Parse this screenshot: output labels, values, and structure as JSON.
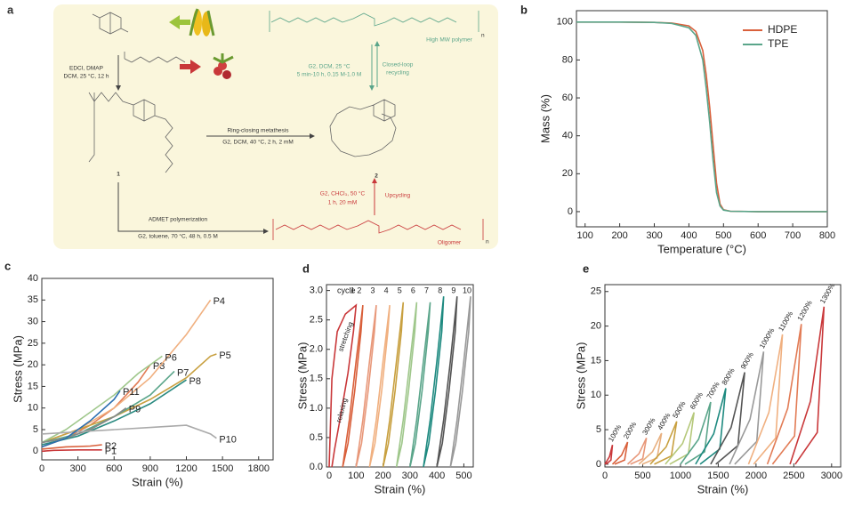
{
  "scheme": {
    "panel": "a",
    "step1": [
      "EDCI, DMAP",
      "DCM, 25 °C, 12 h"
    ],
    "rcm": [
      "Ring-closing metathesis",
      "G2, DCM, 40 °C, 2 h, 2 mM"
    ],
    "admet": [
      "ADMET polymerization",
      "G2, toluene, 70 °C, 48 h, 0.5 M"
    ],
    "closed_loop": [
      "G2, DCM, 25 °C",
      "5 min-10 h, 0.15 M-1.0 M",
      "Closed-loop",
      "recycling"
    ],
    "upcycling": [
      "G2, CHCl₃, 50 °C",
      "1 h, 20 mM",
      "Upcycling"
    ],
    "polymer": "High MW polymer",
    "oligomer": "Oligomer",
    "compounds": [
      "1",
      "2"
    ],
    "repeat": [
      "n",
      "n"
    ]
  },
  "chart_data": [
    {
      "type": "line",
      "panel": "b",
      "x_label": "Temperature (°C)",
      "y_label": "Mass (%)",
      "xlim": [
        75,
        800
      ],
      "xticks": [
        100,
        200,
        300,
        400,
        500,
        600,
        700,
        800
      ],
      "ylim": [
        -8,
        106
      ],
      "yticks": [
        0,
        20,
        40,
        60,
        80,
        100
      ],
      "legend": "upper right",
      "series": [
        {
          "name": "HDPE",
          "color": "#d9603b",
          "x": [
            75,
            100,
            200,
            300,
            350,
            400,
            420,
            440,
            450,
            460,
            470,
            480,
            490,
            500,
            520,
            600,
            700,
            800
          ],
          "values": [
            100,
            100,
            100,
            99.8,
            99.5,
            98,
            95,
            85,
            72,
            55,
            35,
            15,
            4,
            1,
            0.2,
            0,
            0,
            0
          ]
        },
        {
          "name": "TPE",
          "color": "#5aa58a",
          "x": [
            75,
            100,
            200,
            300,
            350,
            400,
            420,
            440,
            450,
            460,
            470,
            480,
            490,
            500,
            520,
            600,
            700,
            800
          ],
          "values": [
            100,
            100,
            100,
            99.8,
            99.3,
            97,
            93,
            80,
            65,
            47,
            27,
            10,
            3,
            0.8,
            0.2,
            0,
            0,
            0
          ]
        }
      ]
    },
    {
      "type": "line",
      "panel": "c",
      "x_label": "Strain (%)",
      "y_label": "Stress (MPa)",
      "xlim": [
        0,
        1920
      ],
      "xticks": [
        0,
        300,
        600,
        900,
        1200,
        1500,
        1800
      ],
      "ylim": [
        -2,
        40
      ],
      "yticks": [
        0,
        5,
        10,
        15,
        20,
        25,
        30,
        35,
        40
      ],
      "series_labels": "end",
      "series": [
        {
          "name": "P1",
          "color": "#c9383a",
          "x": [
            0,
            100,
            300,
            500
          ],
          "values": [
            0,
            0.2,
            0.3,
            0.3
          ]
        },
        {
          "name": "P2",
          "color": "#d9603b",
          "x": [
            0,
            200,
            400,
            500
          ],
          "values": [
            0.5,
            1,
            1.2,
            1.5
          ]
        },
        {
          "name": "P3",
          "color": "#e27c56",
          "x": [
            0,
            200,
            400,
            600,
            800,
            900
          ],
          "values": [
            1,
            3,
            6,
            10,
            16,
            20
          ]
        },
        {
          "name": "P4",
          "color": "#f0b080",
          "x": [
            0,
            300,
            600,
            900,
            1200,
            1400
          ],
          "values": [
            2,
            5,
            10,
            17,
            27,
            35
          ]
        },
        {
          "name": "P5",
          "color": "#c8a040",
          "x": [
            0,
            300,
            600,
            900,
            1200,
            1400,
            1450
          ],
          "values": [
            2,
            5,
            8,
            12,
            17,
            22,
            22.5
          ]
        },
        {
          "name": "P6",
          "color": "#9fc78b",
          "x": [
            0,
            200,
            400,
            600,
            800,
            1000
          ],
          "values": [
            2,
            5,
            9,
            13,
            18,
            22
          ]
        },
        {
          "name": "P7",
          "color": "#5aa58a",
          "x": [
            0,
            300,
            600,
            900,
            1100
          ],
          "values": [
            2,
            4,
            8,
            13,
            18.5
          ]
        },
        {
          "name": "P8",
          "color": "#2a8a80",
          "x": [
            0,
            300,
            600,
            900,
            1200
          ],
          "values": [
            1.5,
            3.5,
            7,
            11,
            16.5
          ]
        },
        {
          "name": "P9",
          "color": "#888888",
          "x": [
            0,
            200,
            400,
            600,
            700
          ],
          "values": [
            2,
            3,
            5,
            8,
            10
          ]
        },
        {
          "name": "P10",
          "color": "#aaaaaa",
          "x": [
            0,
            300,
            600,
            900,
            1200,
            1400,
            1450
          ],
          "values": [
            4,
            4.5,
            5,
            5.5,
            6,
            4,
            3
          ]
        },
        {
          "name": "P11",
          "color": "#2b6fb0",
          "x": [
            0,
            200,
            400,
            600,
            650
          ],
          "values": [
            1,
            3,
            7,
            12,
            14
          ]
        }
      ]
    },
    {
      "type": "line",
      "panel": "d",
      "x_label": "Strain (%)",
      "y_label": "Stress (MPa)",
      "xlim": [
        -10,
        535
      ],
      "xticks": [
        0,
        100,
        200,
        300,
        400,
        500
      ],
      "ylim": [
        0,
        3.1
      ],
      "yticks": [
        {
          "value": 0,
          "label": "0.0"
        },
        0.5,
        {
          "value": 1,
          "label": "1.0"
        },
        1.5,
        {
          "value": 2,
          "label": "2.0"
        },
        2.5,
        {
          "value": 3,
          "label": "3.0"
        }
      ],
      "series_labels": "top",
      "legend_title": "cycle",
      "annotations": [
        "stretching",
        "relaxing"
      ],
      "series": [
        {
          "name": "1",
          "color": "#c9383a",
          "x": [
            0,
            10,
            30,
            60,
            100,
            90,
            70,
            40,
            20,
            10
          ],
          "values": [
            0,
            1.5,
            2.3,
            2.6,
            2.75,
            2.3,
            1.6,
            0.8,
            0.3,
            0
          ]
        },
        {
          "name": "2",
          "color": "#d9603b",
          "x": [
            50,
            75,
            100,
            125,
            118,
            95,
            70,
            50
          ],
          "values": [
            0,
            0.8,
            1.8,
            2.75,
            2.3,
            1.3,
            0.4,
            0
          ]
        },
        {
          "name": "3",
          "color": "#e8987a",
          "x": [
            100,
            125,
            150,
            175,
            168,
            145,
            120,
            100
          ],
          "values": [
            0,
            0.8,
            1.8,
            2.75,
            2.3,
            1.3,
            0.4,
            0
          ]
        },
        {
          "name": "4",
          "color": "#f0b080",
          "x": [
            150,
            175,
            200,
            225,
            218,
            195,
            170,
            150
          ],
          "values": [
            0,
            0.8,
            1.8,
            2.75,
            2.3,
            1.3,
            0.4,
            0
          ]
        },
        {
          "name": "5",
          "color": "#c8a040",
          "x": [
            200,
            225,
            250,
            275,
            268,
            245,
            220,
            200
          ],
          "values": [
            0,
            0.8,
            1.8,
            2.8,
            2.3,
            1.3,
            0.4,
            0
          ]
        },
        {
          "name": "6",
          "color": "#9fc78b",
          "x": [
            250,
            275,
            300,
            325,
            318,
            295,
            270,
            250
          ],
          "values": [
            0,
            0.8,
            1.8,
            2.8,
            2.3,
            1.3,
            0.4,
            0
          ]
        },
        {
          "name": "7",
          "color": "#5aa58a",
          "x": [
            300,
            325,
            350,
            375,
            368,
            345,
            320,
            300
          ],
          "values": [
            0,
            0.8,
            1.8,
            2.8,
            2.3,
            1.3,
            0.4,
            0
          ]
        },
        {
          "name": "8",
          "color": "#1e8a80",
          "x": [
            350,
            375,
            400,
            425,
            418,
            395,
            370,
            350
          ],
          "values": [
            0,
            0.8,
            1.8,
            2.9,
            2.3,
            1.3,
            0.4,
            0
          ]
        },
        {
          "name": "9",
          "color": "#555555",
          "x": [
            400,
            425,
            450,
            475,
            468,
            445,
            420,
            400
          ],
          "values": [
            0,
            0.8,
            1.8,
            2.9,
            2.3,
            1.3,
            0.4,
            0
          ]
        },
        {
          "name": "10",
          "color": "#999999",
          "x": [
            450,
            475,
            500,
            525,
            518,
            495,
            470,
            450
          ],
          "values": [
            0,
            0.8,
            1.8,
            2.9,
            2.3,
            1.3,
            0.4,
            0
          ]
        }
      ]
    },
    {
      "type": "line",
      "panel": "e",
      "x_label": "Strain (%)",
      "y_label": "Stress (MPa)",
      "xlim": [
        0,
        3120
      ],
      "xticks": [
        0,
        500,
        1000,
        1500,
        2000,
        2500,
        3000
      ],
      "ylim": [
        -0.4,
        26
      ],
      "yticks": [
        0,
        5,
        10,
        15,
        20,
        25
      ],
      "series_labels": "peak",
      "series": [
        {
          "name": "100%",
          "color": "#c9383a",
          "x": [
            0,
            60,
            100,
            80,
            15
          ],
          "values": [
            0,
            1.1,
            2.8,
            0.6,
            0
          ]
        },
        {
          "name": "200%",
          "color": "#d9603b",
          "x": [
            100,
            220,
            300,
            260,
            130
          ],
          "values": [
            0,
            1.3,
            3.2,
            0.6,
            0
          ]
        },
        {
          "name": "300%",
          "color": "#e8987a",
          "x": [
            300,
            450,
            550,
            500,
            338
          ],
          "values": [
            0,
            1.5,
            3.8,
            0.8,
            0
          ]
        },
        {
          "name": "400%",
          "color": "#e8b080",
          "x": [
            450,
            630,
            750,
            690,
            495
          ],
          "values": [
            0,
            1.8,
            4.5,
            0.9,
            0
          ]
        },
        {
          "name": "500%",
          "color": "#c8a040",
          "x": [
            600,
            810,
            950,
            880,
            653
          ],
          "values": [
            0,
            2.5,
            6.2,
            1.2,
            0
          ]
        },
        {
          "name": "600%",
          "color": "#b5c87a",
          "x": [
            800,
            1028,
            1180,
            1104,
            857
          ],
          "values": [
            0,
            3,
            7.5,
            1.5,
            0
          ]
        },
        {
          "name": "700%",
          "color": "#5aa58a",
          "x": [
            1000,
            1240,
            1400,
            1320,
            1060
          ],
          "values": [
            0,
            3.6,
            9,
            1.8,
            0
          ]
        },
        {
          "name": "800%",
          "color": "#1e8a80",
          "x": [
            1200,
            1440,
            1600,
            1520,
            1260
          ],
          "values": [
            0,
            4.4,
            11,
            2.2,
            0
          ]
        },
        {
          "name": "900%",
          "color": "#555555",
          "x": [
            1400,
            1670,
            1850,
            1760,
            1468
          ],
          "values": [
            0,
            5.3,
            13.3,
            2.7,
            0
          ]
        },
        {
          "name": "1000%",
          "color": "#999999",
          "x": [
            1650,
            1920,
            2100,
            2010,
            1718
          ],
          "values": [
            0,
            6.5,
            16.3,
            3.3,
            0
          ]
        },
        {
          "name": "1100%",
          "color": "#f0b080",
          "x": [
            1900,
            2170,
            2350,
            2260,
            1968
          ],
          "values": [
            0,
            7.5,
            18.8,
            3.8,
            0
          ]
        },
        {
          "name": "1200%",
          "color": "#e27c56",
          "x": [
            2150,
            2420,
            2600,
            2510,
            2218
          ],
          "values": [
            0,
            8.1,
            20.3,
            4.1,
            0
          ]
        },
        {
          "name": "1300%",
          "color": "#c9383a",
          "x": [
            2450,
            2720,
            2900,
            2810,
            2518
          ],
          "values": [
            0,
            9.1,
            22.8,
            4.6,
            0
          ]
        }
      ]
    }
  ]
}
